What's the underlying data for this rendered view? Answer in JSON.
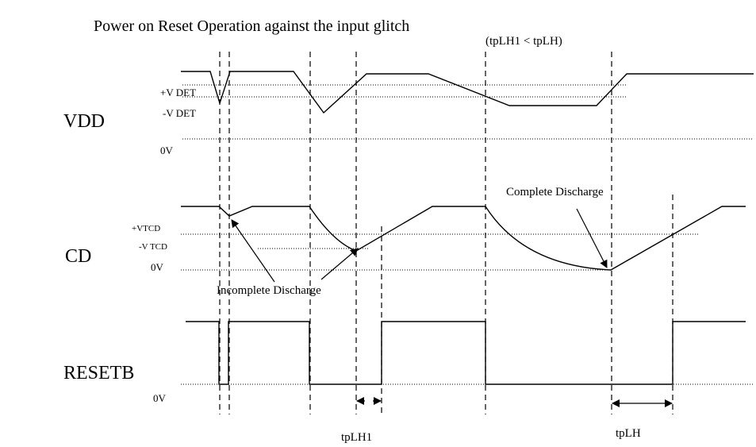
{
  "title": "Power on Reset Operation against the input glitch",
  "note": "(tpLH1 < tpLH)",
  "vdd": {
    "label": "VDD",
    "plus": "+V DET",
    "minus": "-V DET",
    "zero": "0V"
  },
  "cd": {
    "label": "CD",
    "plus": "+VTCD",
    "minus": "-V TCD",
    "zero": "0V",
    "incomplete": "Incomplete Discharge",
    "complete": "Complete Discharge"
  },
  "resetb": {
    "label": "RESETB",
    "zero": "0V"
  },
  "timing": {
    "short": "tpLH1",
    "long": "tpLH"
  }
}
